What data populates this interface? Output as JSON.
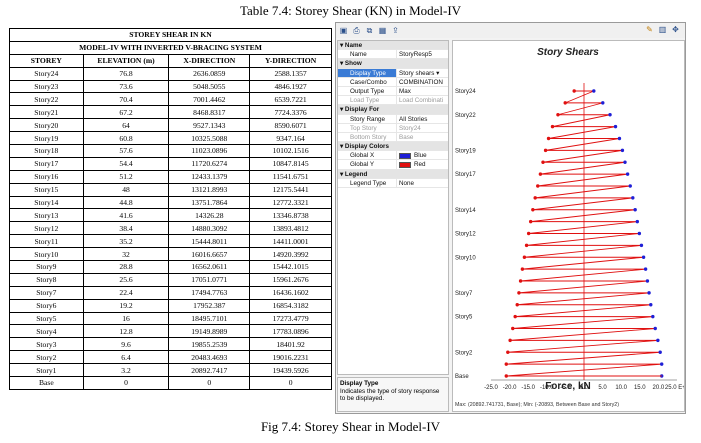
{
  "caption_table": "Table 7.4: Storey Shear (KN) in Model-IV",
  "caption_fig": "Fig 7.4: Storey Shear in Model-IV",
  "table": {
    "title": "STOREY SHEAR IN KN",
    "subtitle": "MODEL-IV WITH INVERTED V-BRACING SYSTEM",
    "headers": [
      "STOREY",
      "ELEVATION (m)",
      "X-DIRECTION",
      "Y-DIRECTION"
    ],
    "rows": [
      [
        "Story24",
        "76.8",
        "2636.0859",
        "2588.1357"
      ],
      [
        "Story23",
        "73.6",
        "5048.5055",
        "4846.1927"
      ],
      [
        "Story22",
        "70.4",
        "7001.4462",
        "6539.7221"
      ],
      [
        "Story21",
        "67.2",
        "8468.8317",
        "7724.3376"
      ],
      [
        "Story20",
        "64",
        "9527.1343",
        "8590.6071"
      ],
      [
        "Story19",
        "60.8",
        "10325.5088",
        "9347.164"
      ],
      [
        "Story18",
        "57.6",
        "11023.0896",
        "10102.1516"
      ],
      [
        "Story17",
        "54.4",
        "11720.6274",
        "10847.8145"
      ],
      [
        "Story16",
        "51.2",
        "12433.1379",
        "11541.6751"
      ],
      [
        "Story15",
        "48",
        "13121.8993",
        "12175.5441"
      ],
      [
        "Story14",
        "44.8",
        "13751.7864",
        "12772.3321"
      ],
      [
        "Story13",
        "41.6",
        "14326.28",
        "13346.8738"
      ],
      [
        "Story12",
        "38.4",
        "14880.3092",
        "13893.4812"
      ],
      [
        "Story11",
        "35.2",
        "15444.8011",
        "14411.0001"
      ],
      [
        "Story10",
        "32",
        "16016.6657",
        "14920.3992"
      ],
      [
        "Story9",
        "28.8",
        "16562.0611",
        "15442.1015"
      ],
      [
        "Story8",
        "25.6",
        "17051.0771",
        "15961.2676"
      ],
      [
        "Story7",
        "22.4",
        "17494.7763",
        "16436.1602"
      ],
      [
        "Story6",
        "19.2",
        "17952.387",
        "16854.3182"
      ],
      [
        "Story5",
        "16",
        "18495.7101",
        "17273.4779"
      ],
      [
        "Story4",
        "12.8",
        "19149.8989",
        "17783.0896"
      ],
      [
        "Story3",
        "9.6",
        "19855.2539",
        "18401.92"
      ],
      [
        "Story2",
        "6.4",
        "20483.4693",
        "19016.2231"
      ],
      [
        "Story1",
        "3.2",
        "20892.7417",
        "19439.5926"
      ],
      [
        "Base",
        "0",
        "0",
        "0"
      ]
    ]
  },
  "app": {
    "toolbar_icons": [
      "save-icon",
      "print-icon",
      "copy-icon",
      "table-icon",
      "export-icon",
      "pen-icon",
      "grid-icon",
      "move-icon"
    ],
    "properties": [
      {
        "type": "cat",
        "label": "Name"
      },
      {
        "type": "row",
        "label": "Name",
        "value": "StoryResp5"
      },
      {
        "type": "cat",
        "label": "Show"
      },
      {
        "type": "row",
        "label": "Display Type",
        "value": "Story shears",
        "selected": true
      },
      {
        "type": "row",
        "label": "Case/Combo",
        "value": "COMBINATION"
      },
      {
        "type": "row",
        "label": "Output Type",
        "value": "Max"
      },
      {
        "type": "row",
        "label": "Load Type",
        "value": "Load Combinati",
        "dim": true
      },
      {
        "type": "cat",
        "label": "Display For"
      },
      {
        "type": "row",
        "label": "Story Range",
        "value": "All Stories"
      },
      {
        "type": "row",
        "label": "Top Story",
        "value": "Story24",
        "dim": true
      },
      {
        "type": "row",
        "label": "Bottom Story",
        "value": "Base",
        "dim": true
      },
      {
        "type": "cat",
        "label": "Display Colors"
      },
      {
        "type": "row",
        "label": "Global X",
        "value": "Blue",
        "swatch": "#1f1fd6"
      },
      {
        "type": "row",
        "label": "Global Y",
        "value": "Red",
        "swatch": "#e01010"
      },
      {
        "type": "cat",
        "label": "Legend"
      },
      {
        "type": "row",
        "label": "Legend Type",
        "value": "None"
      }
    ],
    "desc_title": "Display Type",
    "desc_text": "Indicates the type of story response to be displayed.",
    "status": "Max: (20892.741731, Base); Min: (-20893, Between Base and Story2)"
  },
  "chart_data": {
    "type": "line",
    "title": "Story Shears",
    "xlabel": "Force, kN",
    "x_ticks": [
      "-25.0",
      "-20.0",
      "-15.0",
      "-10.0",
      "-5.0",
      "0.0",
      "5.0",
      "10.0",
      "15.0",
      "20.0",
      "25.0 E+3"
    ],
    "xlim": [
      -25,
      25
    ],
    "x_unit": "E+3",
    "story_labels": [
      "Story24",
      "Story22",
      "Story19",
      "Story17",
      "Story14",
      "Story12",
      "Story10",
      "Story7",
      "Story5",
      "Story2",
      "Base"
    ],
    "stories": [
      "Base",
      "Story1",
      "Story2",
      "Story3",
      "Story4",
      "Story5",
      "Story6",
      "Story7",
      "Story8",
      "Story9",
      "Story10",
      "Story11",
      "Story12",
      "Story13",
      "Story14",
      "Story15",
      "Story16",
      "Story17",
      "Story18",
      "Story19",
      "Story20",
      "Story21",
      "Story22",
      "Story23",
      "Story24"
    ],
    "shear_max": [
      20.89,
      20.89,
      20.48,
      19.86,
      19.15,
      18.5,
      17.95,
      17.49,
      17.05,
      16.56,
      16.02,
      15.44,
      14.88,
      14.33,
      13.75,
      13.12,
      12.43,
      11.72,
      11.02,
      10.33,
      9.53,
      8.47,
      7.0,
      5.05,
      2.64
    ],
    "series": [
      {
        "name": "Global X",
        "color": "#1f1fd6"
      },
      {
        "name": "Global Y",
        "color": "#e01010"
      }
    ],
    "grid": false
  }
}
